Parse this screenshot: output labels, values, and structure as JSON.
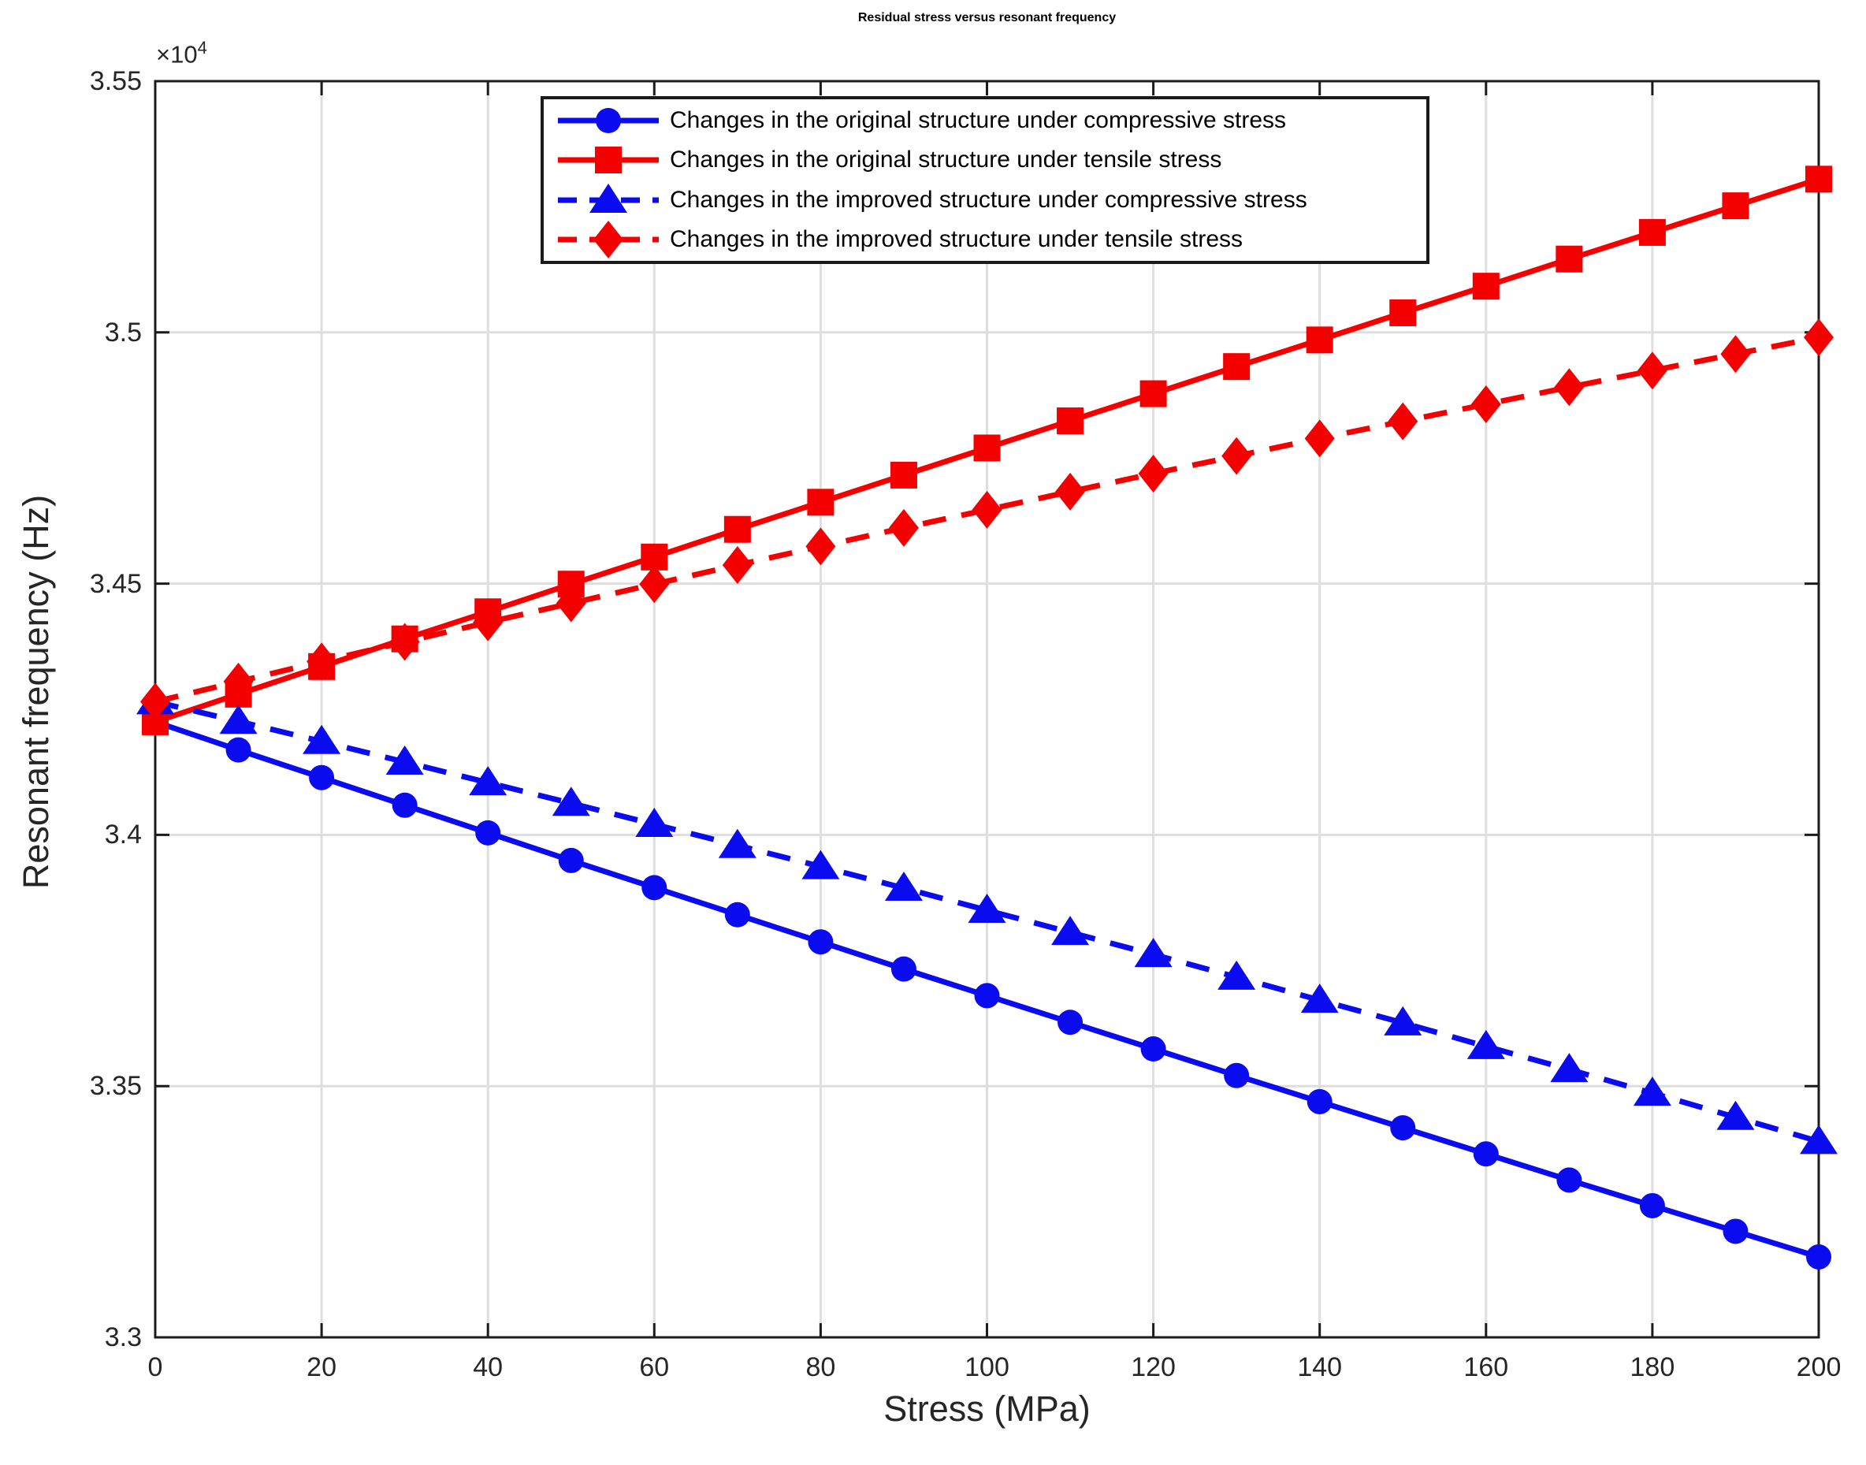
{
  "chart_data": {
    "type": "line",
    "title": "Residual stress versus resonant frequency",
    "xlabel": "Stress (MPa)",
    "ylabel": "Resonant frequency (Hz)",
    "y_axis_exponent": {
      "base": "×10",
      "power": "4"
    },
    "grid": true,
    "legend_position": "top-center-inside",
    "xlim": [
      0,
      200
    ],
    "ylim": [
      33000,
      35500
    ],
    "x_ticks": [
      0,
      20,
      40,
      60,
      80,
      100,
      120,
      140,
      160,
      180,
      200
    ],
    "x_tick_labels": [
      "0",
      "20",
      "40",
      "60",
      "80",
      "100",
      "120",
      "140",
      "160",
      "180",
      "200"
    ],
    "y_ticks": [
      33000,
      33500,
      34000,
      34500,
      35000,
      35500
    ],
    "y_tick_labels": [
      "3.3",
      "3.35",
      "3.4",
      "3.45",
      "3.5",
      "3.55"
    ],
    "x": [
      0,
      10,
      20,
      30,
      40,
      50,
      60,
      70,
      80,
      90,
      100,
      110,
      120,
      130,
      140,
      150,
      160,
      170,
      180,
      190,
      200
    ],
    "series": [
      {
        "id": "original-compressive",
        "name": "Changes in the original structure under compressive stress",
        "color": "#0b0bf0",
        "line": "solid",
        "marker": "circle",
        "values": [
          34225,
          34169,
          34114,
          34059,
          34004,
          33949,
          33895,
          33841,
          33787,
          33733,
          33680,
          33627,
          33574,
          33521,
          33469,
          33417,
          33365,
          33313,
          33262,
          33211,
          33160
        ]
      },
      {
        "id": "original-tensile",
        "name": "Changes in the original structure under tensile stress",
        "color": "#f40000",
        "line": "solid",
        "marker": "square",
        "values": [
          34225,
          34280,
          34335,
          34390,
          34444,
          34499,
          34553,
          34608,
          34662,
          34716,
          34770,
          34824,
          34878,
          34932,
          34985,
          35039,
          35092,
          35146,
          35199,
          35252,
          35305
        ]
      },
      {
        "id": "improved-compressive",
        "name": "Changes in the improved structure under compressive stress",
        "color": "#0b0bf0",
        "line": "dashed",
        "marker": "triangle",
        "values": [
          34265,
          34226,
          34186,
          34145,
          34104,
          34063,
          34021,
          33979,
          33937,
          33894,
          33850,
          33806,
          33762,
          33717,
          33671,
          33626,
          33579,
          33533,
          33486,
          33438,
          33390
        ]
      },
      {
        "id": "improved-tensile",
        "name": "Changes in the improved structure under tensile stress",
        "color": "#f40000",
        "line": "dashed",
        "marker": "diamond",
        "values": [
          34265,
          34305,
          34345,
          34384,
          34423,
          34461,
          34499,
          34537,
          34574,
          34611,
          34647,
          34683,
          34719,
          34754,
          34789,
          34823,
          34857,
          34891,
          34924,
          34957,
          34990
        ]
      }
    ],
    "style": {
      "grid_color": "#dedede",
      "axis_color": "#1c1c1c",
      "tick_label_color": "#262626",
      "background": "#ffffff"
    }
  }
}
